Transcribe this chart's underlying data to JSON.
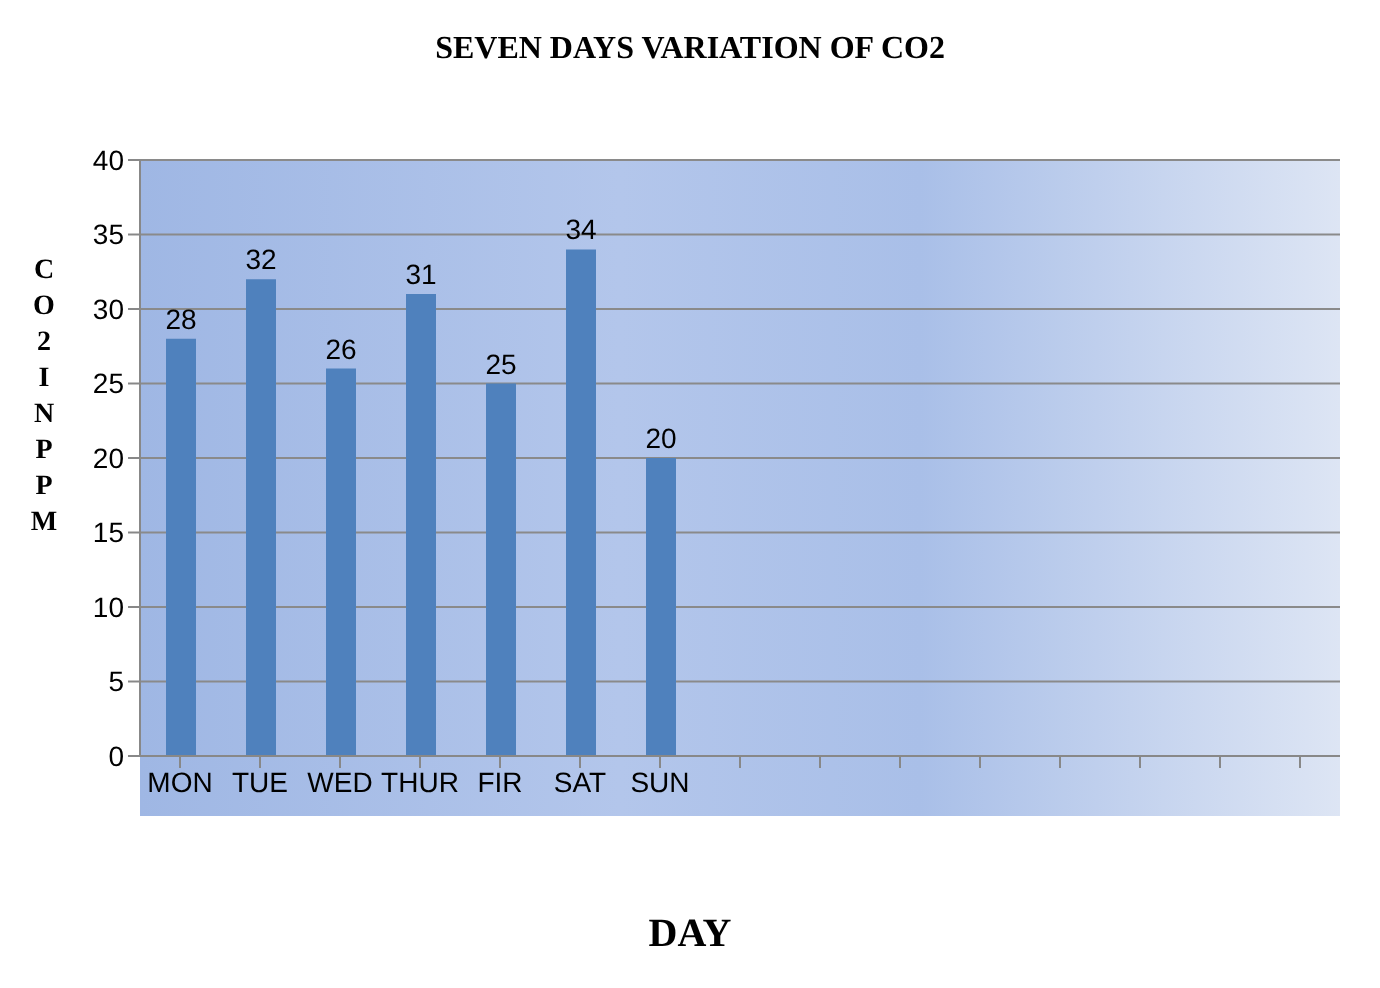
{
  "chart_data": {
    "type": "bar",
    "title": "SEVEN DAYS VARIATION OF CO2",
    "xlabel": "DAY",
    "ylabel": "CO2 IN PPM",
    "categories": [
      "MON",
      "TUE",
      "WED",
      "THUR",
      "FIR",
      "SAT",
      "SUN",
      null,
      null,
      null,
      null,
      null,
      null,
      null,
      null
    ],
    "values": [
      28,
      32,
      26,
      31,
      25,
      34,
      20,
      null,
      null,
      null,
      null,
      null,
      null,
      null,
      null
    ],
    "color": "#4f81bd",
    "ylim": [
      0,
      40
    ],
    "yticks": [
      0,
      5,
      10,
      15,
      20,
      25,
      30,
      35,
      40
    ],
    "grid": "y",
    "data_labels": true,
    "legend": false
  }
}
